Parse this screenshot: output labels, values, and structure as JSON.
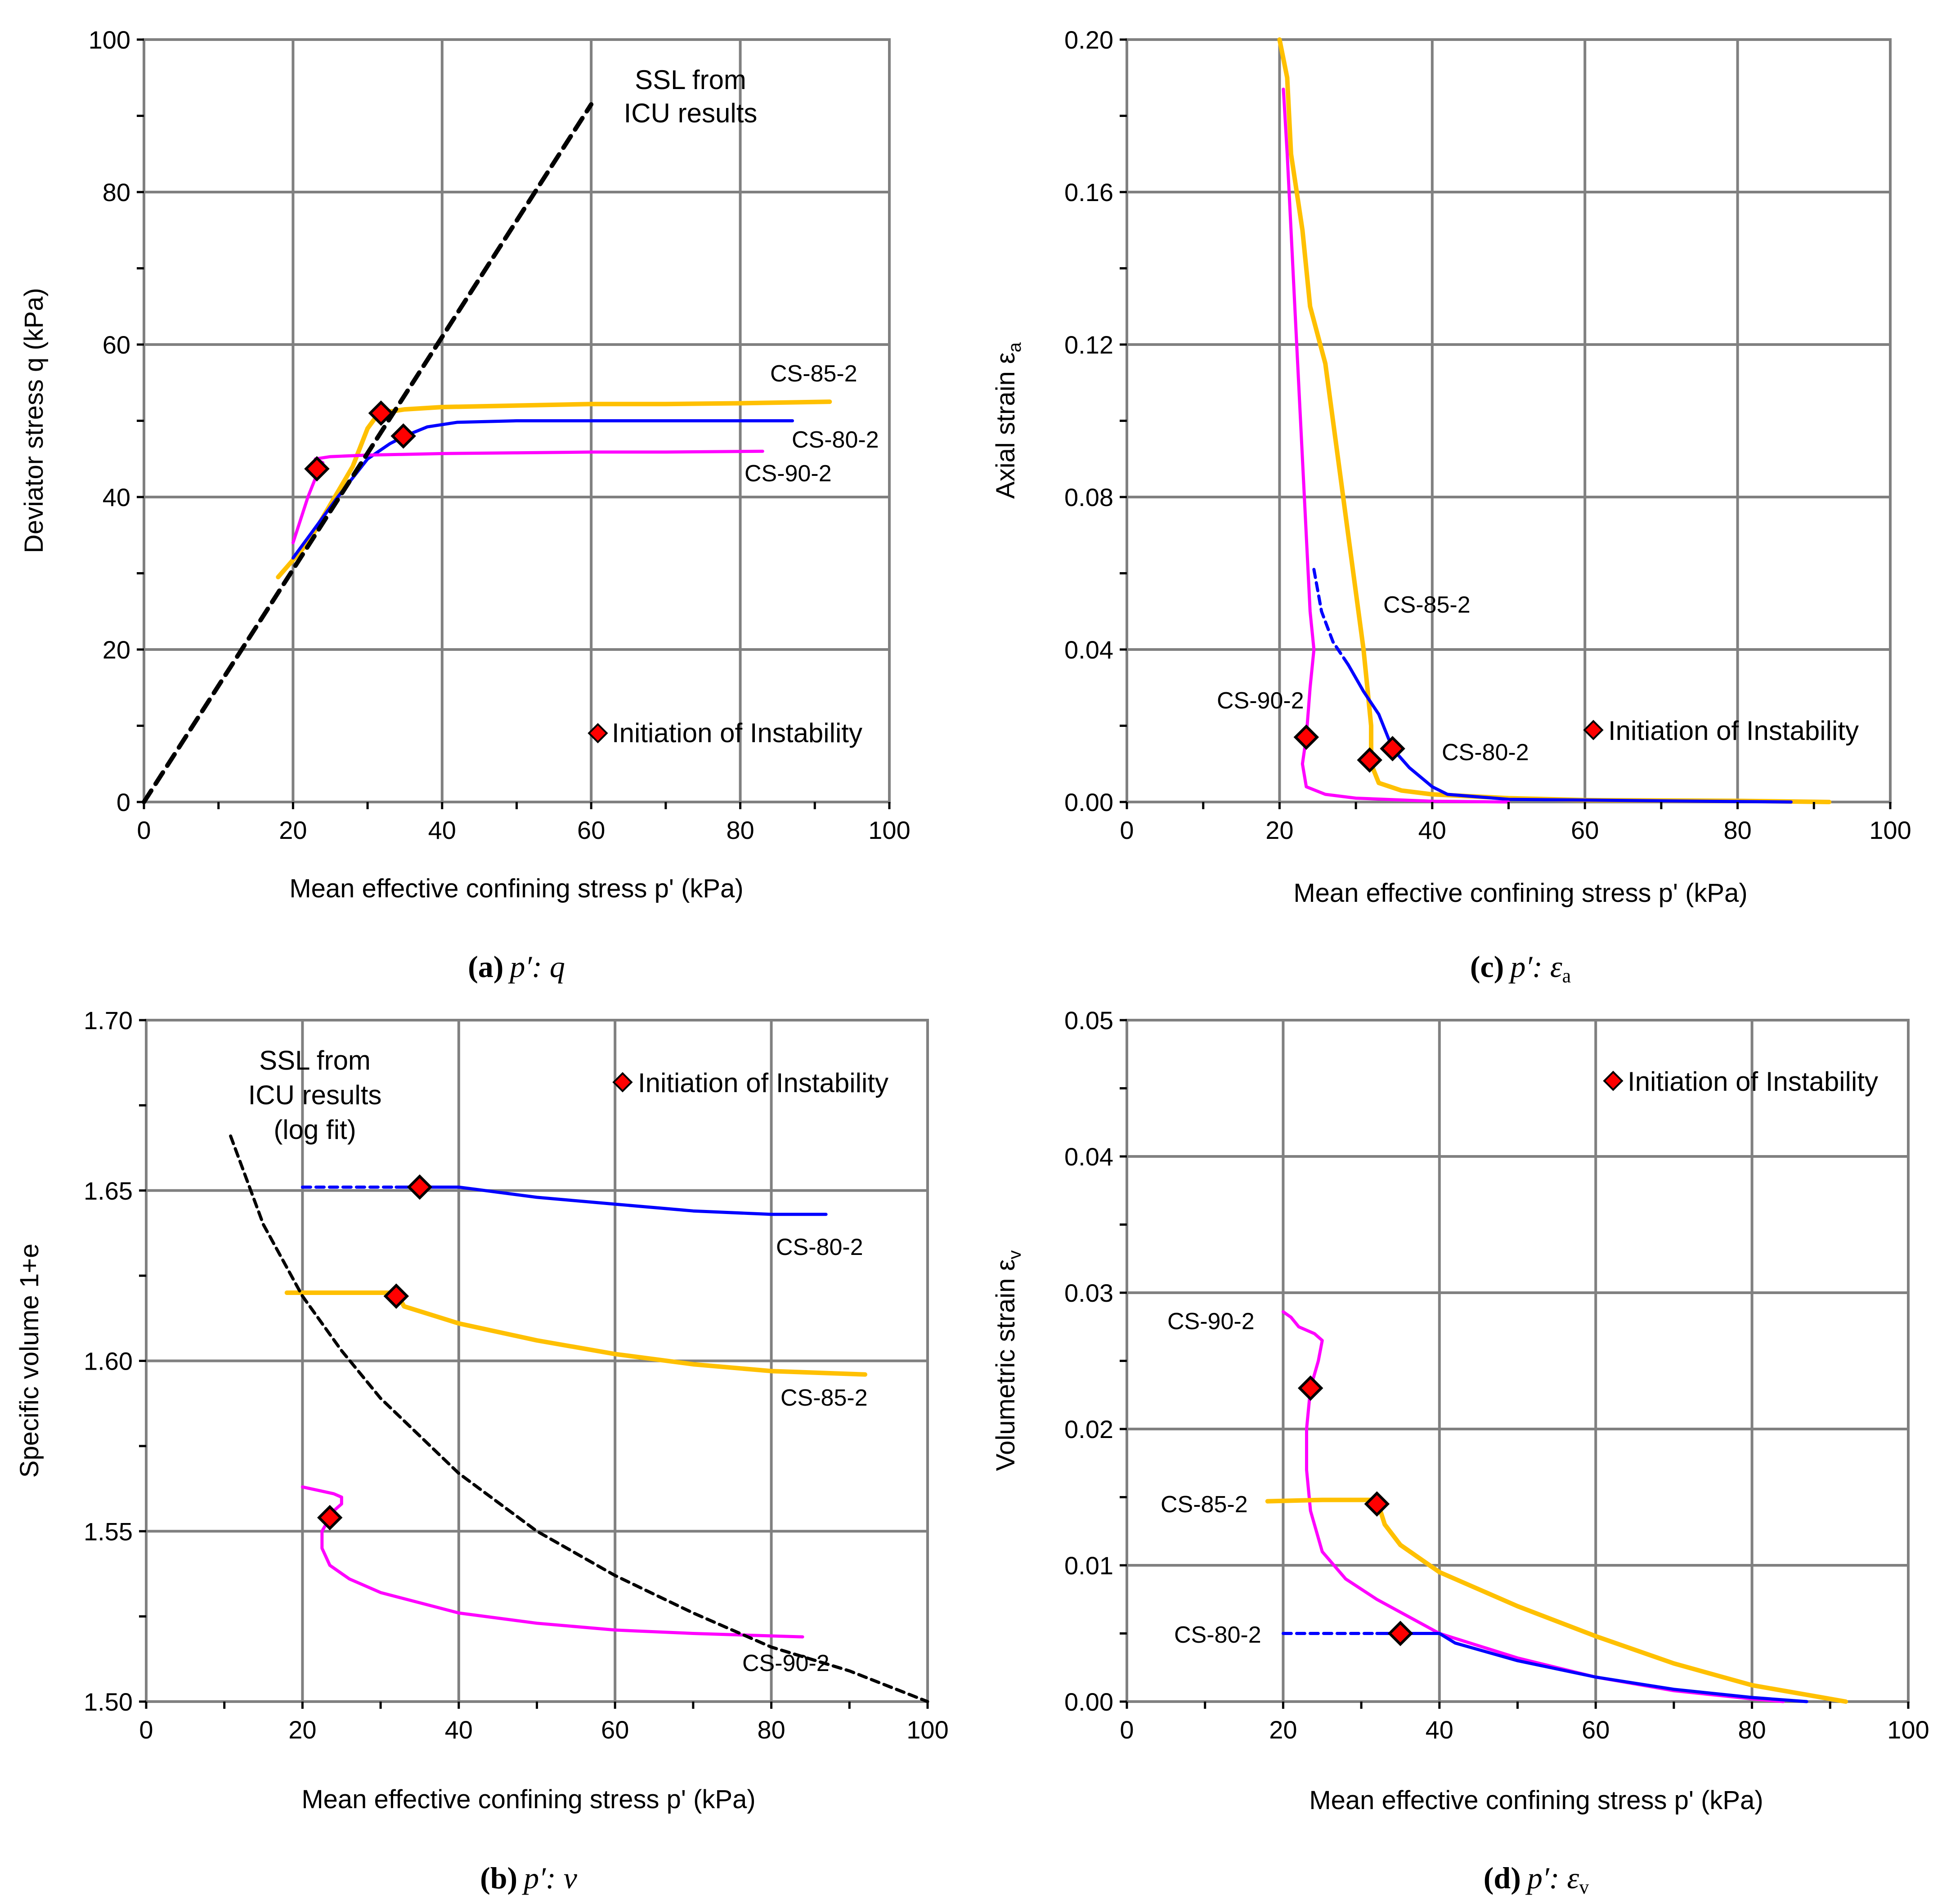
{
  "colors": {
    "CS-80-2": "#0000ff",
    "CS-85-2": "#ffc000",
    "CS-90-2": "#ff00ff",
    "ssl": "#000000",
    "marker": "#ff0000"
  },
  "chart_data": [
    {
      "id": "a",
      "type": "line",
      "caption": {
        "letter": "(a)",
        "text": "p′: q"
      },
      "xlabel": "Mean effective confining stress  p' (kPa)",
      "ylabel": "Deviator stress   q (kPa)",
      "xlim": [
        0,
        100
      ],
      "ylim": [
        0,
        100
      ],
      "xticks": [
        "0",
        "20",
        "40",
        "60",
        "80",
        "100"
      ],
      "yticks": [
        "0",
        "20",
        "40",
        "60",
        "80",
        "100"
      ],
      "grid": true,
      "legend": "Initiation of Instability",
      "annotations": [
        "SSL from",
        "ICU results"
      ],
      "series": [
        {
          "name": "CS-85-2",
          "color_key": "CS-85-2",
          "points": [
            [
              18,
              29.5
            ],
            [
              22,
              34
            ],
            [
              25,
              39
            ],
            [
              28,
              44
            ],
            [
              30,
              49
            ],
            [
              31.5,
              51
            ],
            [
              35,
              51.5
            ],
            [
              40,
              51.8
            ],
            [
              50,
              52
            ],
            [
              60,
              52.2
            ],
            [
              70,
              52.2
            ],
            [
              80,
              52.3
            ],
            [
              92,
              52.5
            ]
          ]
        },
        {
          "name": "CS-80-2",
          "color_key": "CS-80-2",
          "points": [
            [
              20,
              32
            ],
            [
              23,
              36
            ],
            [
              26,
              40
            ],
            [
              30,
              45
            ],
            [
              33,
              47
            ],
            [
              35,
              48
            ],
            [
              38,
              49.2
            ],
            [
              42,
              49.8
            ],
            [
              50,
              50
            ],
            [
              60,
              50
            ],
            [
              70,
              50
            ],
            [
              80,
              50
            ],
            [
              87,
              50
            ]
          ]
        },
        {
          "name": "CS-90-2",
          "color_key": "CS-90-2",
          "points": [
            [
              20,
              34
            ],
            [
              21,
              37
            ],
            [
              22,
              40
            ],
            [
              23.5,
              43.7
            ],
            [
              24,
              44.5
            ],
            [
              23,
              45
            ],
            [
              25,
              45.3
            ],
            [
              30,
              45.5
            ],
            [
              40,
              45.7
            ],
            [
              50,
              45.8
            ],
            [
              60,
              45.9
            ],
            [
              70,
              45.9
            ],
            [
              83,
              46
            ]
          ]
        },
        {
          "name": "SSL from ICU results",
          "color_key": "ssl",
          "dashed": true,
          "points": [
            [
              0,
              0
            ],
            [
              60,
              91.5
            ]
          ]
        }
      ],
      "markers": [
        [
          31.8,
          51
        ],
        [
          34.8,
          48
        ],
        [
          23.2,
          43.7
        ]
      ],
      "series_labels": [
        "CS-85-2",
        "CS-80-2",
        "CS-90-2"
      ]
    },
    {
      "id": "b",
      "type": "line",
      "caption": {
        "letter": "(b)",
        "text": "p′: v"
      },
      "xlabel": "Mean effective confining stress  p' (kPa)",
      "ylabel": "Specific volume   1+e",
      "xlim": [
        0,
        100
      ],
      "ylim": [
        1.5,
        1.7
      ],
      "xticks": [
        "0",
        "20",
        "40",
        "60",
        "80",
        "100"
      ],
      "yticks": [
        "1.50",
        "1.55",
        "1.60",
        "1.65",
        "1.70"
      ],
      "grid": true,
      "legend": "Initiation of Instability",
      "annotations": [
        "SSL from",
        "ICU results",
        "(log fit)"
      ],
      "series": [
        {
          "name": "CS-80-2 (dashed)",
          "color_key": "CS-80-2",
          "dashed": true,
          "points": [
            [
              20,
              1.651
            ],
            [
              32,
              1.651
            ]
          ]
        },
        {
          "name": "CS-80-2",
          "color_key": "CS-80-2",
          "points": [
            [
              32,
              1.651
            ],
            [
              35,
              1.651
            ],
            [
              40,
              1.651
            ],
            [
              50,
              1.648
            ],
            [
              60,
              1.646
            ],
            [
              70,
              1.644
            ],
            [
              80,
              1.643
            ],
            [
              87,
              1.643
            ]
          ]
        },
        {
          "name": "CS-85-2",
          "color_key": "CS-85-2",
          "points": [
            [
              18,
              1.62
            ],
            [
              25,
              1.62
            ],
            [
              32,
              1.62
            ],
            [
              33,
              1.616
            ],
            [
              40,
              1.611
            ],
            [
              50,
              1.606
            ],
            [
              60,
              1.602
            ],
            [
              70,
              1.599
            ],
            [
              80,
              1.597
            ],
            [
              92,
              1.596
            ]
          ]
        },
        {
          "name": "CS-90-2",
          "color_key": "CS-90-2",
          "points": [
            [
              20,
              1.563
            ],
            [
              22,
              1.562
            ],
            [
              24,
              1.561
            ],
            [
              25,
              1.56
            ],
            [
              25,
              1.558
            ],
            [
              24,
              1.556
            ],
            [
              23.5,
              1.554
            ],
            [
              22.5,
              1.55
            ],
            [
              22.5,
              1.545
            ],
            [
              23.5,
              1.54
            ],
            [
              26,
              1.536
            ],
            [
              30,
              1.532
            ],
            [
              40,
              1.526
            ],
            [
              50,
              1.523
            ],
            [
              60,
              1.521
            ],
            [
              70,
              1.52
            ],
            [
              84,
              1.519
            ]
          ]
        },
        {
          "name": "SSL from ICU results (log fit)",
          "color_key": "ssl",
          "dashed": true,
          "points": [
            [
              10.8,
              1.666
            ],
            [
              15,
              1.64
            ],
            [
              20,
              1.619
            ],
            [
              25,
              1.603
            ],
            [
              30,
              1.589
            ],
            [
              40,
              1.567
            ],
            [
              50,
              1.55
            ],
            [
              60,
              1.537
            ],
            [
              70,
              1.526
            ],
            [
              80,
              1.516
            ],
            [
              90,
              1.509
            ],
            [
              100,
              1.5
            ]
          ]
        }
      ],
      "markers": [
        [
          35,
          1.651
        ],
        [
          32,
          1.619
        ],
        [
          23.5,
          1.554
        ]
      ],
      "series_labels": [
        "CS-80-2",
        "CS-85-2",
        "CS-90-2"
      ]
    },
    {
      "id": "c",
      "type": "line",
      "caption": {
        "letter": "(c)",
        "text": "p′: ε",
        "sub": "a"
      },
      "xlabel": "Mean effective confining stress  p' (kPa)",
      "ylabel": "Axial strain   ε",
      "ylabel_sub": "a",
      "xlim": [
        0,
        100
      ],
      "ylim": [
        0,
        0.2
      ],
      "xticks": [
        "0",
        "20",
        "40",
        "60",
        "80",
        "100"
      ],
      "yticks": [
        "0.00",
        "0.04",
        "0.08",
        "0.12",
        "0.16",
        "0.20"
      ],
      "grid": true,
      "legend": "Initiation of Instability",
      "series": [
        {
          "name": "CS-85-2",
          "color_key": "CS-85-2",
          "points": [
            [
              20,
              0.2
            ],
            [
              21,
              0.19
            ],
            [
              21.5,
              0.17
            ],
            [
              23,
              0.15
            ],
            [
              24,
              0.13
            ],
            [
              26,
              0.115
            ],
            [
              27,
              0.1
            ],
            [
              28,
              0.085
            ],
            [
              29,
              0.07
            ],
            [
              30,
              0.055
            ],
            [
              31,
              0.04
            ],
            [
              31.5,
              0.03
            ],
            [
              32,
              0.02
            ],
            [
              32,
              0.01
            ],
            [
              33,
              0.005
            ],
            [
              36,
              0.003
            ],
            [
              40,
              0.002
            ],
            [
              50,
              0.001
            ],
            [
              60,
              0.0005
            ],
            [
              80,
              0.0003
            ],
            [
              92,
              0
            ]
          ]
        },
        {
          "name": "CS-80-2 (dashed)",
          "color_key": "CS-80-2",
          "dashed": true,
          "points": [
            [
              24.5,
              0.061
            ],
            [
              25.5,
              0.05
            ],
            [
              27,
              0.042
            ],
            [
              29,
              0.036
            ]
          ]
        },
        {
          "name": "CS-80-2",
          "color_key": "CS-80-2",
          "points": [
            [
              29,
              0.036
            ],
            [
              31,
              0.029
            ],
            [
              33,
              0.023
            ],
            [
              34.8,
              0.014
            ],
            [
              37,
              0.009
            ],
            [
              40,
              0.004
            ],
            [
              42,
              0.002
            ],
            [
              50,
              0.0007
            ],
            [
              60,
              0.0005
            ],
            [
              70,
              0.0003
            ],
            [
              87,
              0
            ]
          ]
        },
        {
          "name": "CS-90-2",
          "color_key": "CS-90-2",
          "points": [
            [
              20.5,
              0.187
            ],
            [
              21,
              0.17
            ],
            [
              21.5,
              0.15
            ],
            [
              22,
              0.13
            ],
            [
              22.5,
              0.11
            ],
            [
              23,
              0.09
            ],
            [
              23.5,
              0.07
            ],
            [
              24,
              0.05
            ],
            [
              24.5,
              0.04
            ],
            [
              24,
              0.03
            ],
            [
              23.5,
              0.017
            ],
            [
              23,
              0.01
            ],
            [
              23.5,
              0.004
            ],
            [
              26,
              0.002
            ],
            [
              30,
              0.001
            ],
            [
              40,
              0.0002
            ],
            [
              50,
              0
            ]
          ]
        }
      ],
      "markers": [
        [
          23.5,
          0.017
        ],
        [
          31.8,
          0.011
        ],
        [
          34.8,
          0.014
        ]
      ],
      "series_labels": [
        "CS-85-2",
        "CS-90-2",
        "CS-80-2"
      ]
    },
    {
      "id": "d",
      "type": "line",
      "caption": {
        "letter": "(d)",
        "text": "p′: ε",
        "sub": "v"
      },
      "xlabel": "Mean effective confining stress  p' (kPa)",
      "ylabel": "Volumetric strain ε",
      "ylabel_sub": "v",
      "xlim": [
        0,
        100
      ],
      "ylim": [
        0,
        0.05
      ],
      "xticks": [
        "0",
        "20",
        "40",
        "60",
        "80",
        "100"
      ],
      "yticks": [
        "0.00",
        "0.01",
        "0.02",
        "0.03",
        "0.04",
        "0.05"
      ],
      "grid": true,
      "legend": "Initiation of Instability",
      "series": [
        {
          "name": "CS-90-2",
          "color_key": "CS-90-2",
          "points": [
            [
              20,
              0.0286
            ],
            [
              21,
              0.0282
            ],
            [
              22,
              0.0275
            ],
            [
              24,
              0.027
            ],
            [
              25,
              0.0265
            ],
            [
              24.5,
              0.025
            ],
            [
              23.5,
              0.023
            ],
            [
              23,
              0.02
            ],
            [
              23,
              0.017
            ],
            [
              23.5,
              0.014
            ],
            [
              25,
              0.011
            ],
            [
              28,
              0.009
            ],
            [
              32,
              0.0075
            ],
            [
              40,
              0.005
            ],
            [
              50,
              0.0032
            ],
            [
              60,
              0.0018
            ],
            [
              70,
              0.0008
            ],
            [
              80,
              0.0002
            ],
            [
              84,
              0
            ]
          ]
        },
        {
          "name": "CS-85-2",
          "color_key": "CS-85-2",
          "points": [
            [
              18,
              0.0147
            ],
            [
              25,
              0.0148
            ],
            [
              32,
              0.0148
            ],
            [
              33,
              0.013
            ],
            [
              35,
              0.0115
            ],
            [
              40,
              0.0095
            ],
            [
              50,
              0.007
            ],
            [
              60,
              0.0048
            ],
            [
              70,
              0.0028
            ],
            [
              80,
              0.0012
            ],
            [
              92,
              0
            ]
          ]
        },
        {
          "name": "CS-80-2 (dashed)",
          "color_key": "CS-80-2",
          "dashed": true,
          "points": [
            [
              20,
              0.005
            ],
            [
              32,
              0.005
            ]
          ]
        },
        {
          "name": "CS-80-2",
          "color_key": "CS-80-2",
          "points": [
            [
              32,
              0.005
            ],
            [
              40,
              0.005
            ],
            [
              42,
              0.0043
            ],
            [
              50,
              0.003
            ],
            [
              60,
              0.0018
            ],
            [
              70,
              0.0009
            ],
            [
              80,
              0.0003
            ],
            [
              87,
              0
            ]
          ]
        }
      ],
      "markers": [
        [
          23.5,
          0.023
        ],
        [
          32,
          0.0145
        ],
        [
          35,
          0.005
        ]
      ],
      "series_labels": [
        "CS-90-2",
        "CS-85-2",
        "CS-80-2"
      ]
    }
  ]
}
